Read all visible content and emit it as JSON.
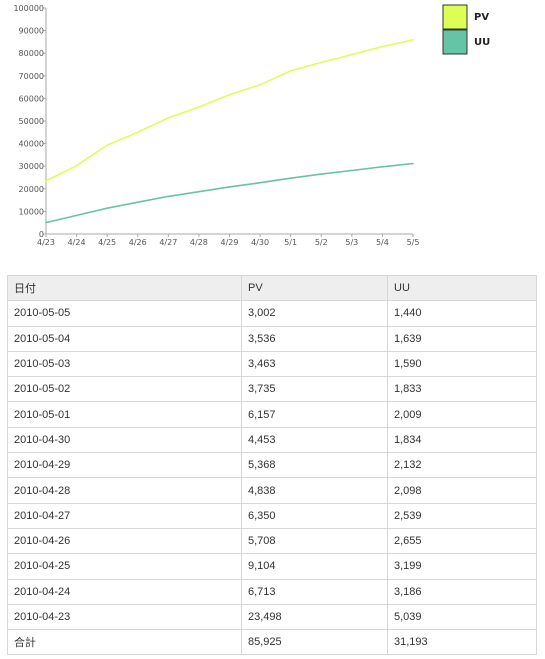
{
  "chart_data": {
    "type": "line",
    "categories": [
      "4/23",
      "4/24",
      "4/25",
      "4/26",
      "4/27",
      "4/28",
      "4/29",
      "4/30",
      "5/1",
      "5/2",
      "5/3",
      "5/4",
      "5/5"
    ],
    "series": [
      {
        "name": "PV",
        "color": "#ddff55",
        "values": [
          23498,
          30211,
          39315,
          45023,
          51373,
          56211,
          61579,
          66032,
          72189,
          75924,
          79387,
          82923,
          85925
        ]
      },
      {
        "name": "UU",
        "color": "#66c4a6",
        "values": [
          5039,
          8225,
          11424,
          14079,
          16618,
          18716,
          20848,
          22682,
          24691,
          26524,
          28114,
          29753,
          31193
        ]
      }
    ],
    "yticks": [
      "0",
      "10000",
      "20000",
      "30000",
      "40000",
      "50000",
      "60000",
      "70000",
      "80000",
      "90000",
      "100000"
    ],
    "ylim": [
      0,
      100000
    ],
    "grid": false,
    "legend": "top-right"
  },
  "table": {
    "headers": [
      "日付",
      "PV",
      "UU"
    ],
    "rows": [
      [
        "2010-05-05",
        "3,002",
        "1,440"
      ],
      [
        "2010-05-04",
        "3,536",
        "1,639"
      ],
      [
        "2010-05-03",
        "3,463",
        "1,590"
      ],
      [
        "2010-05-02",
        "3,735",
        "1,833"
      ],
      [
        "2010-05-01",
        "6,157",
        "2,009"
      ],
      [
        "2010-04-30",
        "4,453",
        "1,834"
      ],
      [
        "2010-04-29",
        "5,368",
        "2,132"
      ],
      [
        "2010-04-28",
        "4,838",
        "2,098"
      ],
      [
        "2010-04-27",
        "6,350",
        "2,539"
      ],
      [
        "2010-04-26",
        "5,708",
        "2,655"
      ],
      [
        "2010-04-25",
        "9,104",
        "3,199"
      ],
      [
        "2010-04-24",
        "6,713",
        "3,186"
      ],
      [
        "2010-04-23",
        "23,498",
        "5,039"
      ]
    ],
    "total": [
      "合計",
      "85,925",
      "31,193"
    ]
  }
}
